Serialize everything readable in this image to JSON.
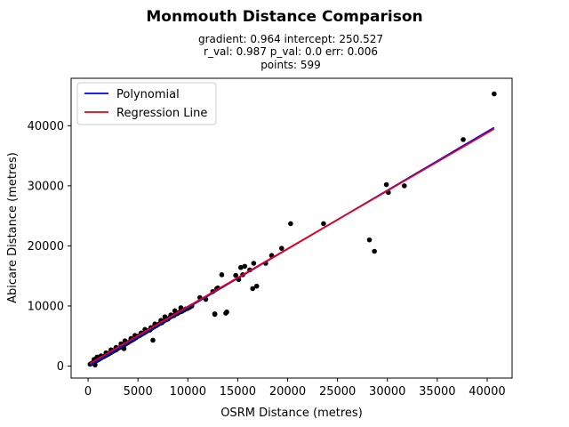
{
  "chart_data": {
    "type": "scatter",
    "title": "Monmouth Distance Comparison",
    "subtitle_lines": [
      "gradient: 0.964  intercept: 250.527",
      "r_val: 0.987  p_val: 0.0  err: 0.006",
      "points: 599"
    ],
    "xlabel": "OSRM Distance (metres)",
    "ylabel": "Abicare Distance (metres)",
    "xlim": [
      -1700,
      42500
    ],
    "ylim": [
      -2000,
      47900
    ],
    "xticks": [
      0,
      5000,
      10000,
      15000,
      20000,
      25000,
      30000,
      35000,
      40000
    ],
    "yticks": [
      0,
      10000,
      20000,
      30000,
      40000
    ],
    "legend": {
      "placement": "top-left",
      "entries": [
        {
          "label": "Polynomial",
          "color": "#0000ff"
        },
        {
          "label": "Regression Line",
          "color": "#e8001a"
        }
      ]
    },
    "series": [
      {
        "name": "Polynomial",
        "kind": "line",
        "color": "#0000ff",
        "x": [
          200,
          40700
        ],
        "y": [
          150,
          39700
        ]
      },
      {
        "name": "Regression Line",
        "kind": "line",
        "color": "#e8001a",
        "x": [
          200,
          40700
        ],
        "y": [
          443,
          39485
        ]
      },
      {
        "kind": "scatter",
        "color": "#000000",
        "x": [
          200,
          350,
          500,
          600,
          700,
          800,
          900,
          1000,
          1100,
          1200,
          1300,
          1400,
          1500,
          1600,
          1700,
          1800,
          1900,
          2000,
          2100,
          2200,
          2300,
          2400,
          2500,
          2600,
          2700,
          2800,
          2900,
          3000,
          3200,
          3400,
          3600,
          3800,
          4000,
          4200,
          4400,
          4600,
          4800,
          5000,
          5200,
          5400,
          5600,
          5800,
          6000,
          6200,
          6400,
          6600,
          6800,
          7000,
          7200,
          7400,
          7600,
          7800,
          8000,
          8200,
          8400,
          8600,
          8800,
          9000,
          9200,
          9400,
          9600,
          9800,
          10000,
          10200,
          10400,
          600,
          900,
          1300,
          1800,
          2300,
          2800,
          3300,
          3700,
          4300,
          4700,
          5300,
          5700,
          6300,
          6700,
          7300,
          7700,
          8300,
          8700,
          9300,
          700,
          3600,
          6500,
          8900,
          11200,
          11800,
          12500,
          12700,
          13000,
          13400,
          12700,
          12900,
          13800,
          13900,
          14800,
          15100,
          15300,
          15500,
          15700,
          16200,
          16500,
          16600,
          16900,
          17800,
          18400,
          19400,
          20300,
          23600,
          28200,
          28700,
          29900,
          30100,
          31700,
          37600,
          40700
        ],
        "y": [
          300,
          450,
          560,
          680,
          760,
          880,
          950,
          1050,
          1120,
          1250,
          1330,
          1450,
          1510,
          1580,
          1700,
          1780,
          1900,
          1950,
          2080,
          2150,
          2250,
          2400,
          2450,
          2560,
          2650,
          2700,
          2850,
          2950,
          3100,
          3300,
          3500,
          3700,
          3900,
          4100,
          4300,
          4500,
          4700,
          4950,
          5100,
          5300,
          5500,
          5700,
          5900,
          6000,
          6300,
          6500,
          6700,
          6900,
          7100,
          7200,
          7500,
          7700,
          7800,
          8100,
          8300,
          8400,
          8700,
          8800,
          9000,
          9100,
          9300,
          9500,
          9600,
          9800,
          10000,
          1100,
          1500,
          1700,
          2200,
          2700,
          3100,
          3700,
          4200,
          4600,
          5100,
          5500,
          6100,
          6400,
          7000,
          7600,
          8200,
          8500,
          9200,
          9700,
          200,
          2900,
          4300,
          8700,
          11400,
          11100,
          12400,
          8600,
          13000,
          15200,
          8700,
          12900,
          8800,
          9000,
          15100,
          14400,
          16400,
          15200,
          16600,
          16000,
          12900,
          17100,
          13300,
          17100,
          18400,
          19600,
          23700,
          23700,
          21000,
          19100,
          30200,
          28900,
          30000,
          37700,
          45300
        ]
      }
    ]
  }
}
